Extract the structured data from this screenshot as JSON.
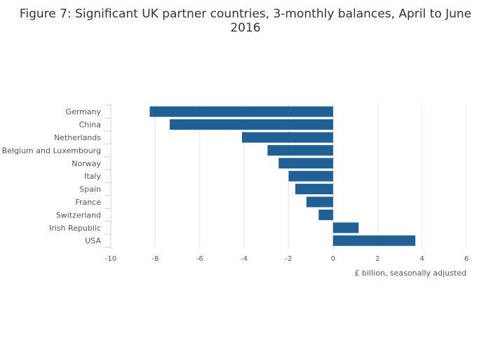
{
  "chart_data": {
    "type": "bar",
    "orientation": "horizontal",
    "title_lines": [
      "Figure 7: Significant UK partner countries, 3-monthly balances, April to June",
      "2016"
    ],
    "categories": [
      "Germany",
      "China",
      "Netherlands",
      "Belgium and Luxembourg",
      "Norway",
      "Italy",
      "Spain",
      "France",
      "Switzerland",
      "Irish Republic",
      "USA"
    ],
    "values": [
      -8.25,
      -7.35,
      -4.1,
      -2.95,
      -2.45,
      -2.0,
      -1.7,
      -1.2,
      -0.65,
      1.15,
      3.7
    ],
    "xlabel": "£ billion, seasonally adjusted",
    "ylabel": "",
    "xlim": [
      -10,
      6
    ],
    "xticks": [
      -10,
      -8,
      -6,
      -4,
      -2,
      0,
      2,
      4,
      6
    ],
    "grid": true,
    "colors": {
      "bar": "#206095"
    }
  }
}
